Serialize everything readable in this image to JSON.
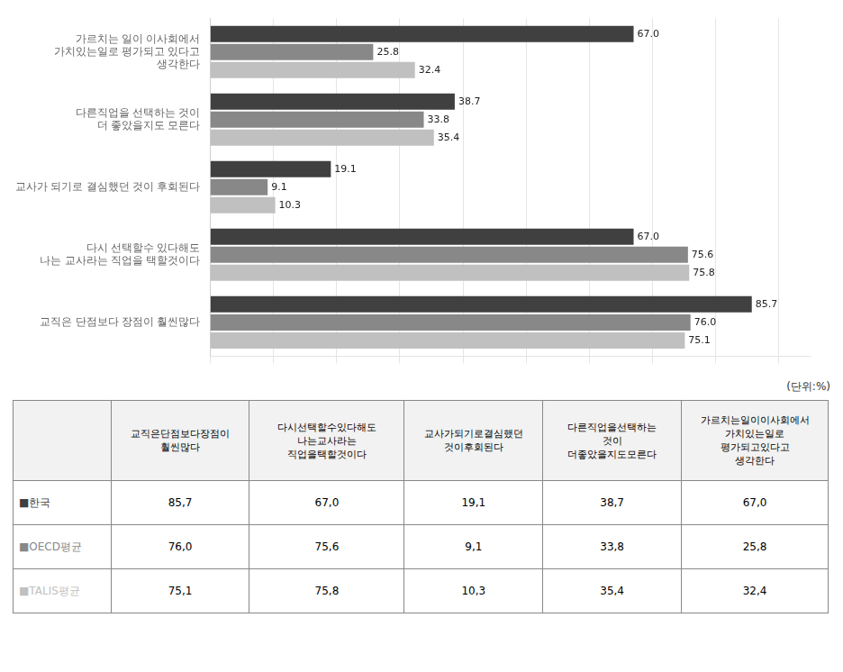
{
  "chart_data": {
    "type": "bar",
    "orientation": "horizontal",
    "categories": [
      "가르치는 일이 이사회에서\n가치있는일로 평가되고 있다고\n생각한다",
      "다른직업을 선택하는 것이\n더 좋았을지도 모른다",
      "교사가 되기로 결심했던 것이 후회된다",
      "다시 선택할수 있다해도\n나는 교사라는 직업을 택할것이다",
      "교직은 단점보다 장점이 훨씬많다"
    ],
    "series": [
      {
        "name": "한국",
        "color": "#404040",
        "values": [
          67.0,
          38.7,
          19.1,
          67.0,
          85.7
        ],
        "value_labels": [
          "67.0",
          "38.7",
          "19.1",
          "67.0",
          "85.7"
        ]
      },
      {
        "name": "OECD평균",
        "color": "#888888",
        "values": [
          25.8,
          33.8,
          9.1,
          75.6,
          76.0
        ],
        "value_labels": [
          "25.8",
          "33.8",
          "9.1",
          "75.6",
          "76.0"
        ]
      },
      {
        "name": "TALIS평균",
        "color": "#c0c0c0",
        "values": [
          32.4,
          35.4,
          10.3,
          75.8,
          75.1
        ],
        "value_labels": [
          "32.4",
          "35.4",
          "10.3",
          "75.8",
          "75.1"
        ]
      }
    ],
    "xlim": [
      0,
      95
    ],
    "xticks": [
      0,
      10,
      20,
      30,
      40,
      50,
      60,
      70,
      80,
      90
    ],
    "grid": true,
    "tick_labels": "y",
    "data_labels": true,
    "annotations": [
      "(단위:%)"
    ]
  },
  "table": {
    "col_headers": [
      "",
      "교직은단점보다장점이\n훨씬많다",
      "다시선택할수있다해도\n나는교사라는\n직업을택할것이다",
      "교사가되기로결심했던\n것이후회된다",
      "다른직업을선택하는\n것이\n더좋았을지도모른다",
      "가르치는일이이사회에서\n가치있는일로\n평가되고있다고\n생각한다"
    ],
    "rows": [
      [
        "■한국",
        "85,7",
        "67,0",
        "19,1",
        "38,7",
        "67,0"
      ],
      [
        "■OECD평균",
        "76,0",
        "75,6",
        "9,1",
        "33,8",
        "25,8"
      ],
      [
        "■TALIS평균",
        "75,1",
        "75,8",
        "10,3",
        "35,4",
        "32,4"
      ]
    ],
    "row_colors": [
      "#404040",
      "#888888",
      "#c0c0c0"
    ]
  }
}
